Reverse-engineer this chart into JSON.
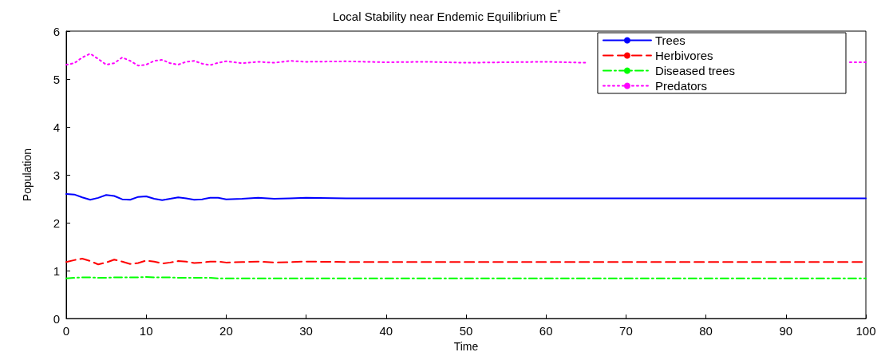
{
  "chart_data": {
    "type": "line",
    "title": "Local Stability near Endemic Equilibrium E$^{*}$",
    "xlabel": "Time",
    "ylabel": "Population",
    "x": [
      0,
      1,
      2,
      3,
      4,
      5,
      6,
      7,
      8,
      9,
      10,
      11,
      12,
      13,
      14,
      15,
      16,
      17,
      18,
      19,
      20,
      22,
      24,
      26,
      28,
      30,
      35,
      40,
      45,
      50,
      55,
      60,
      65,
      70,
      75,
      80,
      85,
      90,
      95,
      100
    ],
    "series": [
      {
        "name": "Trees",
        "color": "#0000ff",
        "line_style": "solid",
        "values": [
          2.6,
          2.59,
          2.53,
          2.48,
          2.52,
          2.58,
          2.56,
          2.49,
          2.48,
          2.54,
          2.55,
          2.5,
          2.47,
          2.5,
          2.53,
          2.51,
          2.48,
          2.49,
          2.52,
          2.52,
          2.49,
          2.5,
          2.52,
          2.5,
          2.51,
          2.52,
          2.51,
          2.51,
          2.51,
          2.51,
          2.51,
          2.51,
          2.51,
          2.51,
          2.51,
          2.51,
          2.51,
          2.51,
          2.51,
          2.51
        ]
      },
      {
        "name": "Herbivores",
        "color": "#ff0000",
        "line_style": "dashed",
        "values": [
          1.18,
          1.22,
          1.25,
          1.2,
          1.13,
          1.17,
          1.23,
          1.19,
          1.14,
          1.16,
          1.21,
          1.19,
          1.15,
          1.17,
          1.2,
          1.19,
          1.16,
          1.17,
          1.19,
          1.19,
          1.17,
          1.18,
          1.19,
          1.17,
          1.18,
          1.19,
          1.18,
          1.18,
          1.18,
          1.18,
          1.18,
          1.18,
          1.18,
          1.18,
          1.18,
          1.18,
          1.18,
          1.18,
          1.18,
          1.18
        ]
      },
      {
        "name": "Diseased trees",
        "color": "#00ff00",
        "line_style": "dashdot",
        "values": [
          0.84,
          0.85,
          0.86,
          0.86,
          0.85,
          0.85,
          0.86,
          0.86,
          0.86,
          0.86,
          0.87,
          0.86,
          0.86,
          0.86,
          0.85,
          0.85,
          0.85,
          0.85,
          0.85,
          0.84,
          0.84,
          0.84,
          0.84,
          0.84,
          0.84,
          0.84,
          0.84,
          0.84,
          0.84,
          0.84,
          0.84,
          0.84,
          0.84,
          0.84,
          0.84,
          0.84,
          0.84,
          0.84,
          0.84,
          0.84
        ]
      },
      {
        "name": "Predators",
        "color": "#ff00ff",
        "line_style": "dotted",
        "x": [
          0,
          1,
          2,
          3,
          4,
          5,
          6,
          7,
          8,
          9,
          10,
          11,
          12,
          13,
          14,
          15,
          16,
          17,
          18,
          19,
          20,
          22,
          24,
          26,
          28,
          30,
          35,
          40,
          45,
          50,
          55,
          60,
          65,
          70,
          75,
          80,
          85,
          90,
          95,
          98,
          100
        ],
        "values": [
          5.3,
          5.33,
          5.45,
          5.53,
          5.42,
          5.3,
          5.33,
          5.45,
          5.38,
          5.28,
          5.3,
          5.38,
          5.4,
          5.33,
          5.3,
          5.36,
          5.38,
          5.32,
          5.29,
          5.34,
          5.37,
          5.33,
          5.36,
          5.34,
          5.38,
          5.36,
          5.37,
          5.35,
          5.36,
          5.34,
          5.35,
          5.36,
          5.34,
          null,
          null,
          null,
          null,
          null,
          null,
          5.35,
          5.35
        ]
      }
    ],
    "xlim": [
      0,
      100
    ],
    "xticks": [
      0,
      10,
      20,
      30,
      40,
      50,
      60,
      70,
      80,
      90,
      100
    ],
    "ylim": [
      0,
      6
    ],
    "yticks": [
      0,
      1,
      2,
      3,
      4,
      5,
      6
    ],
    "grid": false,
    "legend": "top right",
    "marker": "none"
  }
}
